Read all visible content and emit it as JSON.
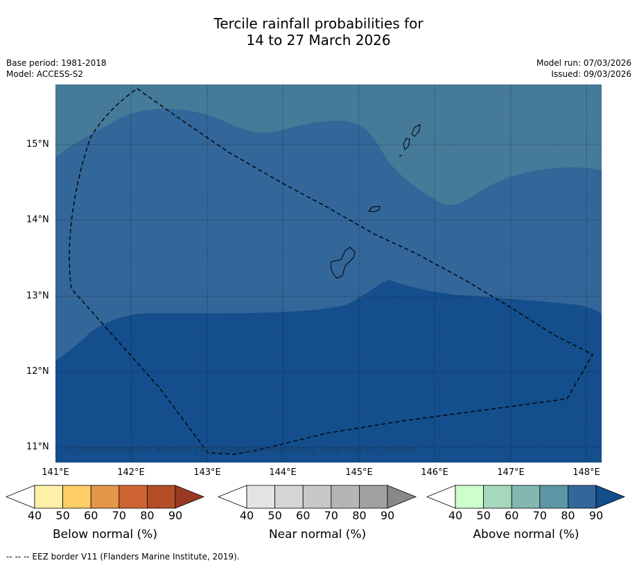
{
  "title": {
    "line1": "Tercile rainfall probabilities for",
    "line2": "14 to 27 March 2026"
  },
  "meta": {
    "base_period": "Base period: 1981-2018",
    "model": "Model: ACCESS-S2",
    "model_run": "Model run: 07/03/2026",
    "issued": "Issued: 09/03/2026"
  },
  "map": {
    "lat_labels": [
      "15°N",
      "14°N",
      "13°N",
      "12°N",
      "11°N"
    ],
    "lon_labels": [
      "141°E",
      "142°E",
      "143°E",
      "144°E",
      "145°E",
      "146°E",
      "147°E",
      "148°E"
    ],
    "copyright": "© Commonwealth of Australia 2026, Bureau of Meteorology, supported by COSPPac",
    "colors": {
      "above_60_70": "#457a99",
      "above_70_80": "#336699",
      "above_80_90": "#144e8c"
    }
  },
  "legends": [
    {
      "label": "Below normal (%)",
      "ticks": [
        "40",
        "50",
        "60",
        "70",
        "80",
        "90"
      ],
      "colors": [
        "#fff0a8",
        "#fdcd66",
        "#e29647",
        "#cf6433",
        "#b54d26",
        "#983a21"
      ]
    },
    {
      "label": "Near normal (%)",
      "ticks": [
        "40",
        "50",
        "60",
        "70",
        "80",
        "90"
      ],
      "colors": [
        "#e4e4e4",
        "#d6d6d6",
        "#c8c8c8",
        "#b5b5b5",
        "#a1a1a1",
        "#888888"
      ]
    },
    {
      "label": "Above normal (%)",
      "ticks": [
        "40",
        "50",
        "60",
        "70",
        "80",
        "90"
      ],
      "colors": [
        "#ccffcc",
        "#a6d8bd",
        "#82b8b0",
        "#5e97a6",
        "#336699",
        "#144e8c"
      ]
    }
  ],
  "footnote": "--  --  -- EEZ border V11 (Flanders Marine Institute, 2019)."
}
